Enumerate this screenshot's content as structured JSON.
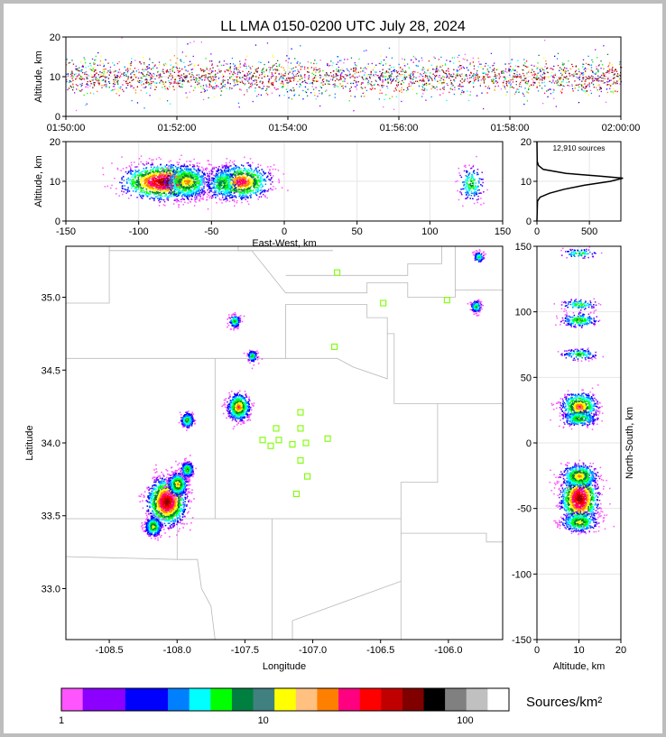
{
  "title": "LL LMA 0150-0200 UTC July 28, 2024",
  "chart_data": [
    {
      "id": "time-height",
      "type": "scatter",
      "xlabel": "",
      "ylabel": "Altitude, km",
      "x_ticks": [
        "01:50:00",
        "01:52:00",
        "01:54:00",
        "01:56:00",
        "01:58:00",
        "02:00:00"
      ],
      "y_ticks": [
        0,
        10,
        20
      ],
      "xlim_minutes": [
        0,
        10
      ],
      "ylim": [
        0,
        20
      ],
      "altitude_band_km": [
        5,
        15
      ],
      "grid": true
    },
    {
      "id": "east-west-altitude",
      "type": "heatmap",
      "xlabel": "East-West, km",
      "ylabel": "Altitude, km",
      "xlim": [
        -150,
        150
      ],
      "ylim": [
        0,
        20
      ],
      "x_ticks": [
        -150,
        -100,
        -50,
        0,
        50,
        100,
        150
      ],
      "y_ticks": [
        0,
        10,
        20
      ],
      "clusters": [
        {
          "x": -83,
          "z": 10,
          "weight": 5
        },
        {
          "x": -67,
          "z": 10,
          "weight": 2
        },
        {
          "x": -30,
          "z": 10,
          "weight": 3
        },
        {
          "x": -43,
          "z": 9.5,
          "weight": 1
        },
        {
          "x": 128,
          "z": 9.5,
          "weight": 0.6
        }
      ],
      "grid": true
    },
    {
      "id": "altitude-histogram",
      "type": "line",
      "annotation": "12,910 sources",
      "xlim": [
        0,
        800
      ],
      "ylim": [
        0,
        20
      ],
      "x_ticks": [
        0,
        500
      ],
      "y_ticks": [
        0,
        10,
        20
      ],
      "profile": [
        {
          "alt": 0,
          "count": 0
        },
        {
          "alt": 5,
          "count": 5
        },
        {
          "alt": 6,
          "count": 30
        },
        {
          "alt": 7,
          "count": 120
        },
        {
          "alt": 8,
          "count": 260
        },
        {
          "alt": 9,
          "count": 450
        },
        {
          "alt": 10,
          "count": 700
        },
        {
          "alt": 10.8,
          "count": 820
        },
        {
          "alt": 11.3,
          "count": 600
        },
        {
          "alt": 12,
          "count": 280
        },
        {
          "alt": 13,
          "count": 60
        },
        {
          "alt": 14,
          "count": 15
        },
        {
          "alt": 15,
          "count": 3
        },
        {
          "alt": 20,
          "count": 0
        }
      ],
      "grid": true
    },
    {
      "id": "plan-view",
      "type": "heatmap",
      "xlabel": "Longitude",
      "ylabel": "Latitude",
      "xlim": [
        -108.82,
        -105.6
      ],
      "ylim": [
        32.65,
        35.35
      ],
      "x_ticks": [
        -108.5,
        -108.0,
        -107.5,
        -107.0,
        -106.5,
        -106.0
      ],
      "y_ticks": [
        33.0,
        33.5,
        34.0,
        34.5,
        35.0
      ],
      "clusters": [
        {
          "lon": -108.08,
          "lat": 33.6,
          "weight": 5
        },
        {
          "lon": -108.0,
          "lat": 33.72,
          "weight": 2
        },
        {
          "lon": -108.18,
          "lat": 33.43,
          "weight": 1.5
        },
        {
          "lon": -107.93,
          "lat": 33.82,
          "weight": 1
        },
        {
          "lon": -107.55,
          "lat": 34.25,
          "weight": 2.5
        },
        {
          "lon": -107.93,
          "lat": 34.16,
          "weight": 1
        },
        {
          "lon": -107.58,
          "lat": 34.84,
          "weight": 0.7
        },
        {
          "lon": -107.45,
          "lat": 34.6,
          "weight": 0.5
        },
        {
          "lon": -105.8,
          "lat": 34.94,
          "weight": 0.6
        },
        {
          "lon": -105.78,
          "lat": 35.28,
          "weight": 0.4
        }
      ],
      "stations": [
        {
          "lon": -106.82,
          "lat": 35.17
        },
        {
          "lon": -106.48,
          "lat": 34.96
        },
        {
          "lon": -106.01,
          "lat": 34.98
        },
        {
          "lon": -106.84,
          "lat": 34.66
        },
        {
          "lon": -107.09,
          "lat": 34.21
        },
        {
          "lon": -107.27,
          "lat": 34.1
        },
        {
          "lon": -107.09,
          "lat": 34.1
        },
        {
          "lon": -107.37,
          "lat": 34.02
        },
        {
          "lon": -107.25,
          "lat": 34.02
        },
        {
          "lon": -107.31,
          "lat": 33.98
        },
        {
          "lon": -107.15,
          "lat": 33.99
        },
        {
          "lon": -107.05,
          "lat": 34.0
        },
        {
          "lon": -106.89,
          "lat": 34.03
        },
        {
          "lon": -107.09,
          "lat": 33.88
        },
        {
          "lon": -107.04,
          "lat": 33.77
        },
        {
          "lon": -107.12,
          "lat": 33.65
        }
      ],
      "station_color": "#7cfc00"
    },
    {
      "id": "altitude-north-south",
      "type": "heatmap",
      "xlabel": "Altitude, km",
      "ylabel": "North-South, km",
      "xlim": [
        0,
        20
      ],
      "ylim": [
        -150,
        150
      ],
      "x_ticks": [
        0,
        10,
        20
      ],
      "y_ticks": [
        150,
        100,
        50,
        0,
        -50,
        -100,
        -150
      ],
      "clusters": [
        {
          "z": 10,
          "y": -42,
          "weight": 5
        },
        {
          "z": 10,
          "y": -25,
          "weight": 2
        },
        {
          "z": 10,
          "y": -60,
          "weight": 1.5
        },
        {
          "z": 10,
          "y": 28,
          "weight": 2.5
        },
        {
          "z": 10,
          "y": 19,
          "weight": 1
        },
        {
          "z": 10,
          "y": 94,
          "weight": 0.8
        },
        {
          "z": 10,
          "y": 68,
          "weight": 0.5
        },
        {
          "z": 10,
          "y": 106,
          "weight": 0.4
        },
        {
          "z": 10,
          "y": 145,
          "weight": 0.3
        }
      ],
      "grid": true
    }
  ],
  "colorbar": {
    "label": "Sources/km²",
    "tick_labels": [
      "1",
      "10",
      "100"
    ],
    "colors": [
      "#ff55ff",
      "#8b00ff",
      "#8b00ff",
      "#0000ff",
      "#0000ff",
      "#0080ff",
      "#00ffff",
      "#00ff00",
      "#008040",
      "#408080",
      "#ffff00",
      "#ffc080",
      "#ff8000",
      "#ff0080",
      "#ff0000",
      "#c00000",
      "#800000",
      "#000000",
      "#808080",
      "#c0c0c0",
      "#ffffff"
    ]
  }
}
